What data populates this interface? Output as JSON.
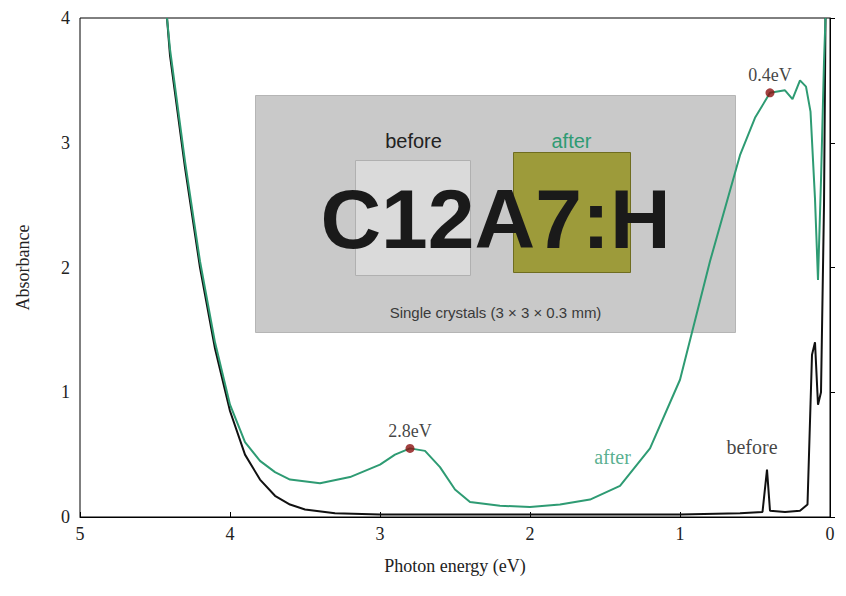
{
  "chart_data": {
    "type": "line",
    "x_label": "Photon energy (eV)",
    "y_label": "Absorbance",
    "xlim": [
      5,
      0
    ],
    "ylim": [
      0,
      4
    ],
    "xticks": [
      5,
      4,
      3,
      2,
      1,
      0
    ],
    "yticks": [
      0,
      1,
      2,
      3,
      4
    ],
    "grid": false,
    "series": [
      {
        "name": "before",
        "color": "#111111",
        "x": [
          4.42,
          4.4,
          4.3,
          4.2,
          4.1,
          4.0,
          3.9,
          3.8,
          3.7,
          3.6,
          3.5,
          3.3,
          3.0,
          2.0,
          1.0,
          0.6,
          0.45,
          0.42,
          0.4,
          0.3,
          0.2,
          0.15,
          0.12,
          0.1,
          0.08,
          0.06,
          0.04,
          0.03
        ],
        "values": [
          4.0,
          3.7,
          2.8,
          2.0,
          1.35,
          0.85,
          0.5,
          0.3,
          0.17,
          0.1,
          0.06,
          0.03,
          0.02,
          0.02,
          0.02,
          0.03,
          0.04,
          0.38,
          0.05,
          0.04,
          0.05,
          0.1,
          1.3,
          1.4,
          0.9,
          1.0,
          2.5,
          4.0
        ],
        "label_x": 0.52,
        "label_y": 0.56
      },
      {
        "name": "after",
        "color": "#2e9b73",
        "x": [
          4.42,
          4.4,
          4.3,
          4.2,
          4.1,
          4.0,
          3.9,
          3.8,
          3.7,
          3.6,
          3.4,
          3.2,
          3.0,
          2.9,
          2.8,
          2.7,
          2.6,
          2.5,
          2.4,
          2.2,
          2.0,
          1.8,
          1.6,
          1.4,
          1.2,
          1.0,
          0.8,
          0.6,
          0.5,
          0.4,
          0.3,
          0.25,
          0.2,
          0.16,
          0.13,
          0.1,
          0.08,
          0.06,
          0.04,
          0.03
        ],
        "values": [
          4.0,
          3.75,
          2.85,
          2.05,
          1.4,
          0.9,
          0.6,
          0.45,
          0.36,
          0.3,
          0.27,
          0.32,
          0.42,
          0.5,
          0.55,
          0.53,
          0.4,
          0.22,
          0.12,
          0.09,
          0.08,
          0.1,
          0.14,
          0.25,
          0.55,
          1.1,
          2.05,
          2.9,
          3.2,
          3.4,
          3.42,
          3.35,
          3.5,
          3.45,
          3.25,
          2.55,
          1.9,
          2.7,
          3.65,
          4.0
        ],
        "label_x": 1.45,
        "label_y": 0.48
      }
    ],
    "points": {
      "color": "#8b1010",
      "items": [
        {
          "x": 2.8,
          "y": 0.55,
          "label": "2.8eV"
        },
        {
          "x": 0.4,
          "y": 3.4,
          "label": "0.4eV"
        }
      ]
    },
    "inset": {
      "before": "before",
      "after": "after",
      "title": "C12A7:H",
      "caption": "Single crystals (3 × 3 × 0.3 mm)"
    }
  }
}
